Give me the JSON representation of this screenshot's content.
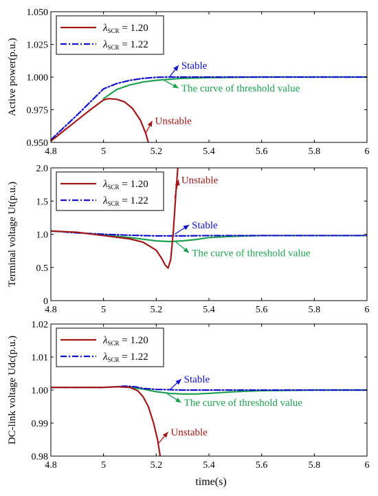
{
  "figure": {
    "xlabel": "time(s)"
  },
  "colors": {
    "unstable": "#a01818",
    "stable": "#1010cc",
    "threshold": "#1ea050",
    "axis": "#000000"
  },
  "chart_data": [
    {
      "type": "line",
      "ylabel": "Active power(p.u.)",
      "xlim": [
        4.8,
        6
      ],
      "ylim": [
        0.95,
        1.05
      ],
      "xticks": [
        4.8,
        5,
        5.2,
        5.4,
        5.6,
        5.8,
        6
      ],
      "xtick_labels": [
        "4.8",
        "5",
        "5.2",
        "5.4",
        "5.6",
        "5.8",
        "6"
      ],
      "yticks": [
        0.95,
        0.975,
        1.0,
        1.025,
        1.05
      ],
      "ytick_labels": [
        "0.950",
        "0.975",
        "1.000",
        "1.025",
        "1.050"
      ],
      "legend": {
        "placement": "top-left",
        "entries": [
          {
            "symbol": "λ",
            "sub": "SCR",
            "value": " = 1.20",
            "style": "solid",
            "color": "#a01818"
          },
          {
            "symbol": "λ",
            "sub": "SCR",
            "value": " = 1.22",
            "style": "dashdot",
            "color": "#1010cc"
          }
        ]
      },
      "series": [
        {
          "role": "unstable",
          "style": "solid",
          "color": "#a01818",
          "x": [
            4.8,
            4.85,
            4.9,
            4.95,
            5.0,
            5.02,
            5.05,
            5.08,
            5.11,
            5.14,
            5.16,
            5.17
          ],
          "y": [
            0.951,
            0.959,
            0.967,
            0.975,
            0.9825,
            0.9835,
            0.983,
            0.981,
            0.976,
            0.967,
            0.957,
            0.95
          ]
        },
        {
          "role": "stable",
          "style": "dashdot",
          "color": "#1010cc",
          "x": [
            4.8,
            4.9,
            5.0,
            5.05,
            5.1,
            5.15,
            5.2,
            5.25,
            5.3,
            5.4,
            5.6,
            5.8,
            6.0
          ],
          "y": [
            0.952,
            0.971,
            0.991,
            0.995,
            0.9975,
            0.999,
            0.9998,
            1.0,
            1.0,
            1.0,
            1.0,
            1.0,
            1.0
          ]
        },
        {
          "role": "threshold",
          "style": "solid",
          "color": "#1ea050",
          "x": [
            5.0,
            5.05,
            5.1,
            5.15,
            5.2,
            5.25,
            5.3,
            5.4,
            5.5,
            5.6,
            5.8,
            6.0
          ],
          "y": [
            0.9835,
            0.9905,
            0.994,
            0.9962,
            0.9975,
            0.9983,
            0.999,
            0.9995,
            0.9998,
            1.0,
            1.0,
            1.0
          ]
        }
      ],
      "annotations": [
        {
          "text": "Stable",
          "color": "#1010cc",
          "arrow_x": 5.25,
          "arrow_y": 1.0,
          "label_x": 5.29,
          "label_y": 1.009
        },
        {
          "text": "The curve of threshold value",
          "color": "#1ea050",
          "arrow_x": 5.23,
          "arrow_y": 0.9975,
          "label_x": 5.29,
          "label_y": 0.9915
        },
        {
          "text": "Unstable",
          "color": "#a01818",
          "arrow_x": 5.16,
          "arrow_y": 0.957,
          "label_x": 5.19,
          "label_y": 0.9665
        }
      ]
    },
    {
      "type": "line",
      "ylabel": "Terminal voltage Ut(p.u.)",
      "xlim": [
        4.8,
        6
      ],
      "ylim": [
        0,
        2
      ],
      "xticks": [
        4.8,
        5,
        5.2,
        5.4,
        5.6,
        5.8,
        6
      ],
      "xtick_labels": [
        "4.8",
        "5",
        "5.2",
        "5.4",
        "5.6",
        "5.8",
        "6"
      ],
      "yticks": [
        0,
        0.5,
        1,
        1.5,
        2
      ],
      "ytick_labels": [
        "0",
        "0.5",
        "1.0",
        "1.5",
        "2.0"
      ],
      "legend": {
        "placement": "top-left",
        "entries": [
          {
            "symbol": "λ",
            "sub": "SCR",
            "value": " = 1.20",
            "style": "solid",
            "color": "#a01818"
          },
          {
            "symbol": "λ",
            "sub": "SCR",
            "value": " = 1.22",
            "style": "dashdot",
            "color": "#1010cc"
          }
        ]
      },
      "series": [
        {
          "role": "unstable",
          "style": "solid",
          "color": "#a01818",
          "x": [
            4.8,
            4.9,
            5.0,
            5.1,
            5.15,
            5.2,
            5.22,
            5.235,
            5.245,
            5.255,
            5.265,
            5.275,
            5.282
          ],
          "y": [
            1.05,
            1.03,
            0.98,
            0.93,
            0.88,
            0.76,
            0.64,
            0.53,
            0.49,
            0.62,
            1.05,
            1.65,
            2.0
          ]
        },
        {
          "role": "stable",
          "style": "dashdot",
          "color": "#1010cc",
          "x": [
            4.8,
            4.9,
            5.0,
            5.1,
            5.2,
            5.3,
            5.4,
            5.6,
            5.8,
            6.0
          ],
          "y": [
            1.05,
            1.02,
            1.0,
            0.985,
            0.975,
            0.975,
            0.98,
            0.98,
            0.98,
            0.98
          ]
        },
        {
          "role": "threshold",
          "style": "solid",
          "color": "#1ea050",
          "x": [
            5.0,
            5.1,
            5.2,
            5.25,
            5.3,
            5.35,
            5.4,
            5.5,
            5.6,
            5.8,
            6.0
          ],
          "y": [
            0.99,
            0.95,
            0.9,
            0.89,
            0.9,
            0.92,
            0.95,
            0.97,
            0.98,
            0.98,
            0.98
          ]
        }
      ],
      "annotations": [
        {
          "text": "Stable",
          "color": "#1010cc",
          "arrow_x": 5.27,
          "arrow_y": 1.0,
          "label_x": 5.33,
          "label_y": 1.14
        },
        {
          "text": "The curve of threshold value",
          "color": "#1ea050",
          "arrow_x": 5.27,
          "arrow_y": 0.9,
          "label_x": 5.33,
          "label_y": 0.72
        },
        {
          "text": "Unstable",
          "color": "#a01818",
          "arrow_x": 5.27,
          "arrow_y": 1.55,
          "label_x": 5.29,
          "label_y": 1.82
        }
      ]
    },
    {
      "type": "line",
      "ylabel": "DC-link voltage Udc(p.u.)",
      "xlim": [
        4.8,
        6
      ],
      "ylim": [
        0.98,
        1.02
      ],
      "xticks": [
        4.8,
        5,
        5.2,
        5.4,
        5.6,
        5.8,
        6
      ],
      "xtick_labels": [
        "4.8",
        "5",
        "5.2",
        "5.4",
        "5.6",
        "5.8",
        "6"
      ],
      "yticks": [
        0.98,
        0.99,
        1.0,
        1.01,
        1.02
      ],
      "ytick_labels": [
        "0.98",
        "0.99",
        "1.00",
        "1.01",
        "1.02"
      ],
      "legend": {
        "placement": "top-left",
        "entries": [
          {
            "symbol": "λ",
            "sub": "SCR",
            "value": " = 1.20",
            "style": "solid",
            "color": "#a01818"
          },
          {
            "symbol": "λ",
            "sub": "SCR",
            "value": " = 1.22",
            "style": "dashdot",
            "color": "#1010cc"
          }
        ]
      },
      "series": [
        {
          "role": "unstable",
          "style": "solid",
          "color": "#a01818",
          "x": [
            4.8,
            4.9,
            5.0,
            5.05,
            5.1,
            5.13,
            5.15,
            5.17,
            5.19,
            5.205,
            5.215
          ],
          "y": [
            1.0008,
            1.0008,
            1.0008,
            1.001,
            1.0008,
            0.9998,
            0.998,
            0.995,
            0.99,
            0.985,
            0.98
          ]
        },
        {
          "role": "stable",
          "style": "dashdot",
          "color": "#1010cc",
          "x": [
            4.8,
            4.9,
            5.0,
            5.05,
            5.08,
            5.12,
            5.15,
            5.2,
            5.25,
            5.3,
            5.4,
            5.6,
            6.0
          ],
          "y": [
            1.0008,
            1.0008,
            1.0008,
            1.001,
            1.0012,
            1.001,
            1.0005,
            1.0002,
            1.0001,
            1.0,
            1.0,
            1.0,
            1.0
          ]
        },
        {
          "role": "threshold",
          "style": "solid",
          "color": "#1ea050",
          "x": [
            5.1,
            5.15,
            5.2,
            5.25,
            5.3,
            5.35,
            5.4,
            5.5,
            5.6,
            5.8,
            6.0
          ],
          "y": [
            1.0008,
            1.0003,
            0.9995,
            0.999,
            0.9988,
            0.9988,
            0.999,
            0.9995,
            0.9998,
            1.0,
            1.0
          ]
        }
      ],
      "annotations": [
        {
          "text": "Stable",
          "color": "#1010cc",
          "arrow_x": 5.25,
          "arrow_y": 1.0,
          "label_x": 5.3,
          "label_y": 1.0033
        },
        {
          "text": "The curve of threshold value",
          "color": "#1ea050",
          "arrow_x": 5.24,
          "arrow_y": 0.999,
          "label_x": 5.3,
          "label_y": 0.9962
        },
        {
          "text": "Unstable",
          "color": "#a01818",
          "arrow_x": 5.21,
          "arrow_y": 0.984,
          "label_x": 5.25,
          "label_y": 0.9873
        }
      ]
    }
  ]
}
